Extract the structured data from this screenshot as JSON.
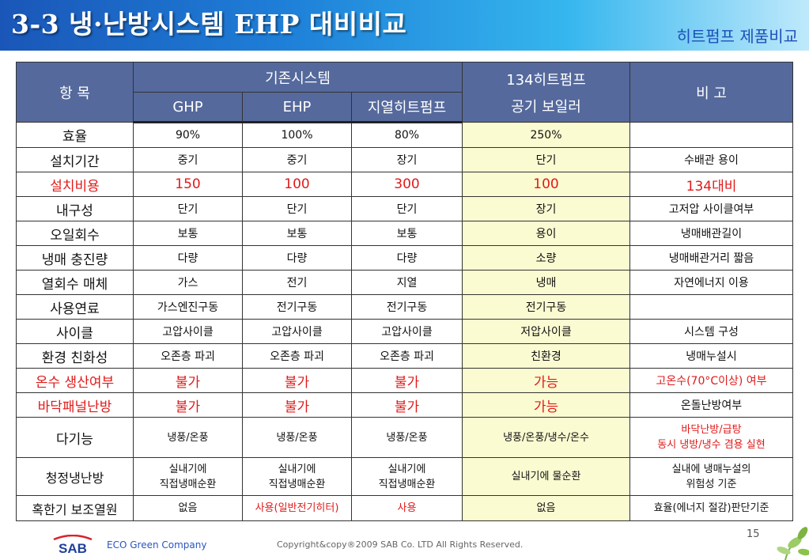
{
  "slide": {
    "title": "3-3 냉·난방시스템 EHP 대비비교",
    "subtitle": "히트펌프 제품비교",
    "page_number": "15"
  },
  "table": {
    "header": {
      "item": "항 목",
      "group_existing": "기존시스템",
      "ghp": "GHP",
      "ehp": "EHP",
      "geo": "지열히트펌프",
      "heatpump_line1": "134히트펌프",
      "heatpump_line2": "공기 보일러",
      "note": "비 고"
    },
    "rows": [
      {
        "item": "효율",
        "ghp": "90%",
        "ehp": "100%",
        "geo": "80%",
        "hp": "250%",
        "note": ""
      },
      {
        "item": "설치기간",
        "ghp": "중기",
        "ehp": "중기",
        "geo": "장기",
        "hp": "단기",
        "note": "수배관 용이"
      },
      {
        "item": "설치비용",
        "ghp": "150",
        "ehp": "100",
        "geo": "300",
        "hp": "100",
        "note": "134대비"
      },
      {
        "item": "내구성",
        "ghp": "단기",
        "ehp": "단기",
        "geo": "단기",
        "hp": "장기",
        "note": "고저압 사이클여부"
      },
      {
        "item": "오일회수",
        "ghp": "보통",
        "ehp": "보통",
        "geo": "보통",
        "hp": "용이",
        "note": "냉매배관길이"
      },
      {
        "item": "냉매 충진량",
        "ghp": "다량",
        "ehp": "다량",
        "geo": "다량",
        "hp": "소량",
        "note": "냉매배관거리 짧음"
      },
      {
        "item": "열회수 매체",
        "ghp": "가스",
        "ehp": "전기",
        "geo": "지열",
        "hp": "냉매",
        "note": "자연에너지 이용"
      },
      {
        "item": "사용연료",
        "ghp": "가스엔진구동",
        "ehp": "전기구동",
        "geo": "전기구동",
        "hp": "전기구동",
        "note": ""
      },
      {
        "item": "사이클",
        "ghp": "고압사이클",
        "ehp": "고압사이클",
        "geo": "고압사이클",
        "hp": "저압사이클",
        "note": "시스템 구성"
      },
      {
        "item": "환경 친화성",
        "ghp": "오존층 파괴",
        "ehp": "오존층 파괴",
        "geo": "오존층 파괴",
        "hp": "친환경",
        "note": "냉매누설시"
      },
      {
        "item": "온수 생산여부",
        "ghp": "불가",
        "ehp": "불가",
        "geo": "불가",
        "hp": "가능",
        "note": "고온수(70°C이상) 여부"
      },
      {
        "item": "바닥패널난방",
        "ghp": "불가",
        "ehp": "불가",
        "geo": "불가",
        "hp": "가능",
        "note": "온돌난방여부"
      },
      {
        "item": "다기능",
        "ghp": "냉풍/온풍",
        "ehp": "냉풍/온풍",
        "geo": "냉풍/온풍",
        "hp": "냉풍/온풍/냉수/온수",
        "note_line1": "바닥난방/급탕",
        "note_line2": "동시 냉방/냉수 겸용 실현"
      },
      {
        "item": "청정냉난방",
        "ghp_line1": "실내기에",
        "ghp_line2": "직접냉매순환",
        "ehp_line1": "실내기에",
        "ehp_line2": "직접냉매순환",
        "geo_line1": "실내기에",
        "geo_line2": "직접냉매순환",
        "hp": "실내기에 물순환",
        "note_line1": "실내에 냉매누설의",
        "note_line2": "위험성 기준"
      },
      {
        "item": "혹한기 보조열원",
        "ghp": "없음",
        "ehp": "사용(일반전기히터)",
        "geo": "사용",
        "hp": "없음",
        "note": "효율(에너지 절감)판단기준"
      }
    ]
  },
  "footer": {
    "logo_text": "SAB",
    "tagline": "ECO Green Company",
    "copyright": "Copyright&copy®2009 SAB Co. LTD All Rights Reserved."
  },
  "colors": {
    "header_cell": "#55699c",
    "highlight_column": "#fbfbd2",
    "emphasis_red": "#e01a1a",
    "banner_blue": "#1e7fd8",
    "logo_blue": "#1f3f9a",
    "logo_red": "#d8232a"
  }
}
